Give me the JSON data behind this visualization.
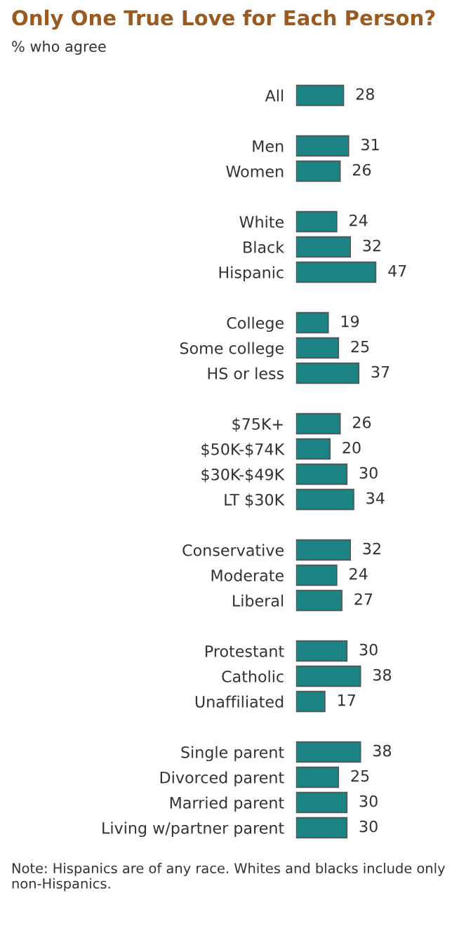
{
  "chart_data": {
    "type": "bar",
    "orientation": "horizontal",
    "title": "Only One True Love for Each Person?",
    "subtitle": "% who agree",
    "categories": [
      "All",
      null,
      "Men",
      "Women",
      null,
      "White",
      "Black",
      "Hispanic",
      null,
      "College",
      "Some college",
      "HS or less",
      null,
      "$75K+",
      "$50K-$74K",
      "$30K-$49K",
      "LT $30K",
      null,
      "Conservative",
      "Moderate",
      "Liberal",
      null,
      "Protestant",
      "Catholic",
      "Unaffiliated",
      null,
      "Single parent",
      "Divorced parent",
      "Married parent",
      "Living w/partner parent"
    ],
    "values": [
      28,
      null,
      31,
      26,
      null,
      24,
      32,
      47,
      null,
      19,
      25,
      37,
      null,
      26,
      20,
      30,
      34,
      null,
      32,
      24,
      27,
      null,
      30,
      38,
      17,
      null,
      38,
      25,
      30,
      30
    ],
    "color": "#1b8383",
    "data_labels": true,
    "annotations": [
      "Note: Hispanics are of any race. Whites and blacks include only non-Hispanics."
    ]
  }
}
